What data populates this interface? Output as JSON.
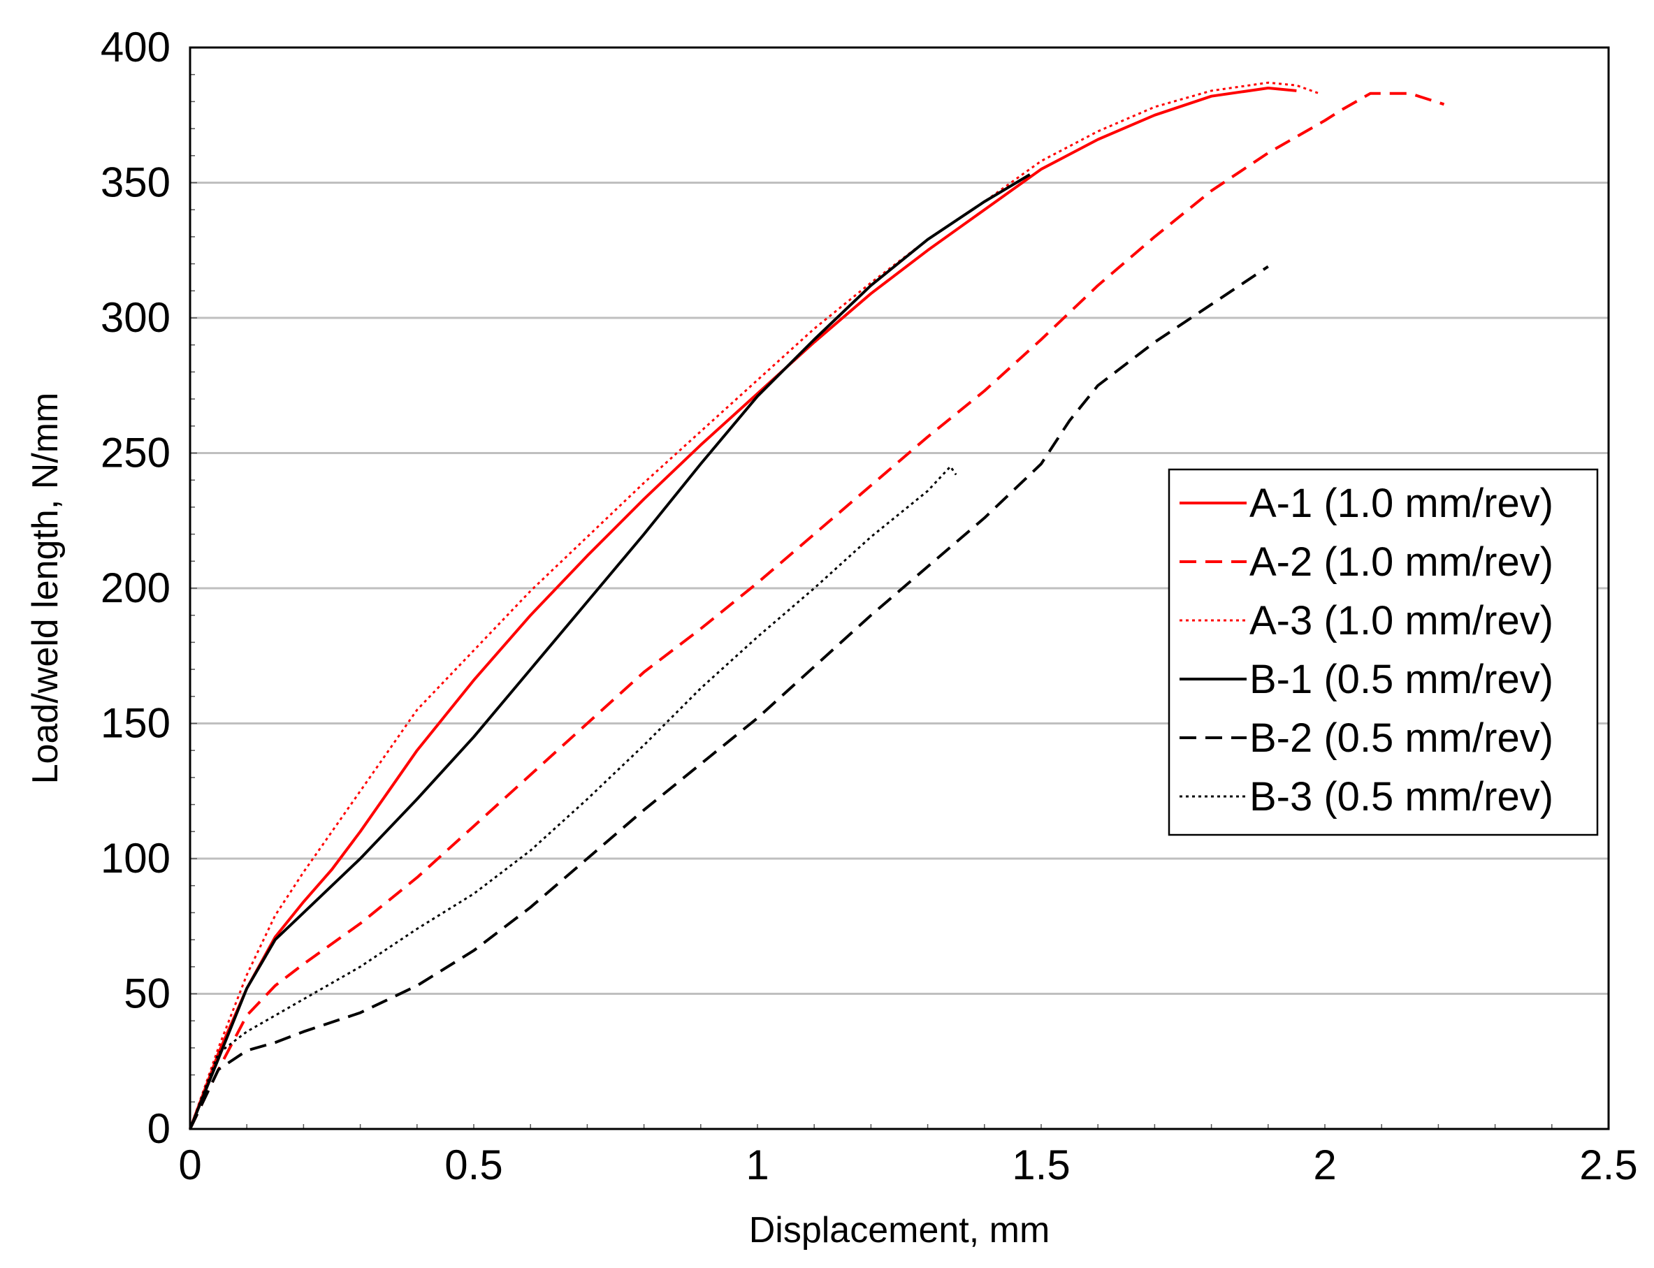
{
  "chart_data": {
    "type": "line",
    "title": "",
    "xlabel": "Displacement, mm",
    "ylabel": "Load/weld length, N/mm",
    "xlim": [
      0,
      2.5
    ],
    "ylim": [
      0,
      400
    ],
    "x_ticks": [
      0,
      0.5,
      1,
      1.5,
      2,
      2.5
    ],
    "x_tick_labels": [
      "0",
      "0.5",
      "1",
      "1.5",
      "2",
      "2.5"
    ],
    "y_ticks": [
      0,
      50,
      100,
      150,
      200,
      250,
      300,
      350,
      400
    ],
    "y_tick_labels": [
      "0",
      "50",
      "100",
      "150",
      "200",
      "250",
      "300",
      "350",
      "400"
    ],
    "grid": "horizontal",
    "legend_position": "right",
    "series": [
      {
        "name": "A-1 (1.0 mm/rev)",
        "color": "#ff0000",
        "dash": "solid",
        "x": [
          0,
          0.05,
          0.1,
          0.15,
          0.2,
          0.25,
          0.3,
          0.35,
          0.4,
          0.5,
          0.6,
          0.7,
          0.8,
          0.9,
          1.0,
          1.1,
          1.2,
          1.3,
          1.4,
          1.5,
          1.6,
          1.7,
          1.8,
          1.9,
          1.95
        ],
        "y": [
          0,
          28,
          52,
          71,
          84,
          96,
          110,
          125,
          140,
          166,
          190,
          212,
          233,
          253,
          272,
          291,
          309,
          325,
          340,
          355,
          366,
          375,
          382,
          385,
          384
        ]
      },
      {
        "name": "A-2 (1.0 mm/rev)",
        "color": "#ff0000",
        "dash": "dashed",
        "x": [
          0,
          0.05,
          0.1,
          0.15,
          0.2,
          0.3,
          0.4,
          0.5,
          0.6,
          0.7,
          0.8,
          0.9,
          1.0,
          1.1,
          1.2,
          1.3,
          1.4,
          1.5,
          1.6,
          1.7,
          1.8,
          1.9,
          2.0,
          2.03,
          2.08,
          2.15,
          2.21
        ],
        "y": [
          0,
          22,
          42,
          53,
          61,
          76,
          93,
          112,
          131,
          150,
          169,
          185,
          202,
          220,
          238,
          256,
          273,
          292,
          312,
          330,
          347,
          361,
          373,
          377,
          383,
          383,
          379
        ]
      },
      {
        "name": "A-3 (1.0 mm/rev)",
        "color": "#ff0000",
        "dash": "dotted",
        "x": [
          0,
          0.05,
          0.1,
          0.15,
          0.2,
          0.25,
          0.3,
          0.35,
          0.4,
          0.5,
          0.6,
          0.7,
          0.8,
          0.9,
          1.0,
          1.1,
          1.2,
          1.3,
          1.4,
          1.5,
          1.6,
          1.7,
          1.8,
          1.9,
          1.95,
          1.99
        ],
        "y": [
          0,
          30,
          57,
          79,
          95,
          110,
          125,
          140,
          155,
          177,
          199,
          219,
          239,
          258,
          277,
          296,
          313,
          329,
          343,
          358,
          369,
          378,
          384,
          387,
          386,
          383
        ]
      },
      {
        "name": "B-1 (0.5 mm/rev)",
        "color": "#000000",
        "dash": "solid",
        "x": [
          0,
          0.05,
          0.1,
          0.15,
          0.2,
          0.25,
          0.3,
          0.4,
          0.5,
          0.6,
          0.7,
          0.8,
          0.9,
          1.0,
          1.1,
          1.2,
          1.3,
          1.4,
          1.48
        ],
        "y": [
          0,
          26,
          52,
          70,
          80,
          90,
          100,
          122,
          145,
          170,
          195,
          220,
          246,
          271,
          292,
          312,
          329,
          343,
          353
        ]
      },
      {
        "name": "B-2 (0.5 mm/rev)",
        "color": "#000000",
        "dash": "dashed",
        "x": [
          0,
          0.05,
          0.1,
          0.15,
          0.2,
          0.3,
          0.4,
          0.5,
          0.6,
          0.7,
          0.8,
          0.9,
          1.0,
          1.1,
          1.2,
          1.3,
          1.4,
          1.5,
          1.55,
          1.6,
          1.7,
          1.8,
          1.9
        ],
        "y": [
          0,
          22,
          29,
          32,
          36,
          43,
          53,
          66,
          82,
          100,
          118,
          135,
          152,
          171,
          190,
          208,
          226,
          246,
          262,
          275,
          291,
          305,
          319
        ]
      },
      {
        "name": "B-3 (0.5 mm/rev)",
        "color": "#000000",
        "dash": "dotted",
        "x": [
          0,
          0.05,
          0.1,
          0.15,
          0.2,
          0.3,
          0.4,
          0.5,
          0.6,
          0.7,
          0.8,
          0.9,
          1.0,
          1.1,
          1.2,
          1.3,
          1.34,
          1.35
        ],
        "y": [
          0,
          28,
          36,
          42,
          48,
          60,
          74,
          87,
          103,
          122,
          142,
          163,
          182,
          200,
          219,
          236,
          245,
          242
        ]
      }
    ]
  }
}
